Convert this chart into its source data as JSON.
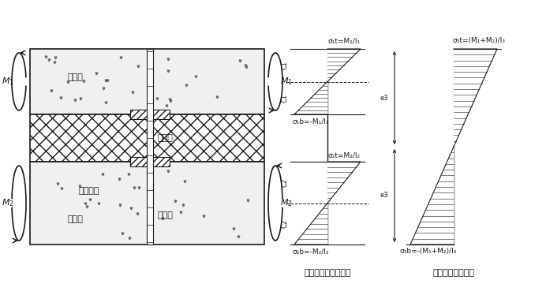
{
  "bg_color": "#ffffff",
  "line_color": "#1a1a1a",
  "label_outer": "外叶墙",
  "label_inner": "内叶墙",
  "label_insulation": "保温层",
  "label_positioning": "定位扎盘",
  "label_connector": "连接件",
  "stress_label_1": "非组合式墙板应力图",
  "stress_label_2": "组合式墙板应力图",
  "sigma_1t": "σ₁t=M₁/l₁",
  "sigma_1b": "σ₁b=-M₁/l₁",
  "sigma_2t": "σ₂t=M₂/l₂",
  "sigma_2b": "σ₂b=-M₂/l₂",
  "sigma_3t": "σ₃t=(M₁+M₂)/l₃",
  "sigma_3b": "σ₃b=-(M₁+M₂)/l₃"
}
